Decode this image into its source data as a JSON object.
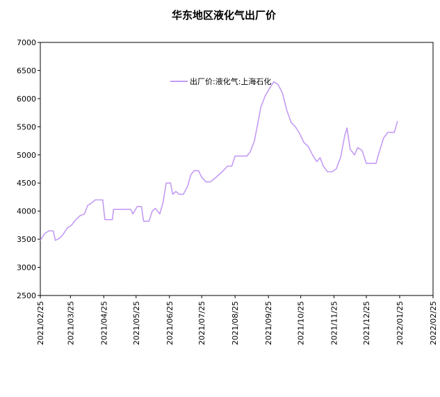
{
  "chart_data": {
    "type": "line",
    "title": "华东地区液化气出厂价",
    "xlabel": "",
    "ylabel": "",
    "ylim": [
      2500,
      7000
    ],
    "yticks": [
      2500,
      3000,
      3500,
      4000,
      4500,
      5000,
      5500,
      6000,
      6500,
      7000
    ],
    "xticks": [
      "2021/02/25",
      "2021/03/25",
      "2021/04/25",
      "2021/05/25",
      "2021/06/25",
      "2021/07/25",
      "2021/08/25",
      "2021/09/25",
      "2021/10/25",
      "2021/11/25",
      "2021/12/25",
      "2022/01/25",
      "2022/02/25"
    ],
    "legend_position": "top-center",
    "grid": false,
    "series": [
      {
        "name": "出厂价:液化气:上海石化",
        "color": "#c39bf3",
        "points": [
          [
            "2021/02/25",
            3480
          ],
          [
            "2021/03/01",
            3600
          ],
          [
            "2021/03/05",
            3650
          ],
          [
            "2021/03/09",
            3650
          ],
          [
            "2021/03/11",
            3480
          ],
          [
            "2021/03/15",
            3520
          ],
          [
            "2021/03/18",
            3580
          ],
          [
            "2021/03/22",
            3700
          ],
          [
            "2021/03/26",
            3750
          ],
          [
            "2021/03/30",
            3850
          ],
          [
            "2021/04/03",
            3920
          ],
          [
            "2021/04/07",
            3950
          ],
          [
            "2021/04/10",
            4100
          ],
          [
            "2021/04/14",
            4150
          ],
          [
            "2021/04/17",
            4200
          ],
          [
            "2021/04/24",
            4200
          ],
          [
            "2021/04/26",
            3850
          ],
          [
            "2021/05/03",
            3850
          ],
          [
            "2021/05/04",
            4030
          ],
          [
            "2021/05/20",
            4030
          ],
          [
            "2021/05/22",
            3950
          ],
          [
            "2021/05/26",
            4080
          ],
          [
            "2021/05/30",
            4080
          ],
          [
            "2021/06/01",
            3820
          ],
          [
            "2021/06/06",
            3820
          ],
          [
            "2021/06/09",
            4000
          ],
          [
            "2021/06/12",
            4050
          ],
          [
            "2021/06/16",
            3950
          ],
          [
            "2021/06/19",
            4150
          ],
          [
            "2021/06/22",
            4500
          ],
          [
            "2021/06/26",
            4500
          ],
          [
            "2021/06/28",
            4300
          ],
          [
            "2021/07/01",
            4350
          ],
          [
            "2021/07/04",
            4300
          ],
          [
            "2021/07/08",
            4300
          ],
          [
            "2021/07/12",
            4450
          ],
          [
            "2021/07/15",
            4650
          ],
          [
            "2021/07/18",
            4720
          ],
          [
            "2021/07/22",
            4720
          ],
          [
            "2021/07/25",
            4600
          ],
          [
            "2021/07/29",
            4520
          ],
          [
            "2021/08/02",
            4520
          ],
          [
            "2021/08/06",
            4580
          ],
          [
            "2021/08/10",
            4650
          ],
          [
            "2021/08/14",
            4720
          ],
          [
            "2021/08/18",
            4800
          ],
          [
            "2021/08/22",
            4800
          ],
          [
            "2021/08/25",
            4980
          ],
          [
            "2021/09/05",
            4980
          ],
          [
            "2021/09/08",
            5050
          ],
          [
            "2021/09/12",
            5250
          ],
          [
            "2021/09/15",
            5550
          ],
          [
            "2021/09/18",
            5850
          ],
          [
            "2021/09/22",
            6050
          ],
          [
            "2021/09/26",
            6180
          ],
          [
            "2021/09/30",
            6300
          ],
          [
            "2021/10/04",
            6250
          ],
          [
            "2021/10/08",
            6100
          ],
          [
            "2021/10/12",
            5800
          ],
          [
            "2021/10/16",
            5580
          ],
          [
            "2021/10/20",
            5500
          ],
          [
            "2021/10/24",
            5380
          ],
          [
            "2021/10/28",
            5220
          ],
          [
            "2021/11/01",
            5150
          ],
          [
            "2021/11/05",
            5000
          ],
          [
            "2021/11/09",
            4880
          ],
          [
            "2021/11/12",
            4950
          ],
          [
            "2021/11/15",
            4800
          ],
          [
            "2021/11/19",
            4700
          ],
          [
            "2021/11/23",
            4700
          ],
          [
            "2021/11/27",
            4750
          ],
          [
            "2021/12/01",
            4950
          ],
          [
            "2021/12/05",
            5350
          ],
          [
            "2021/12/07",
            5480
          ],
          [
            "2021/12/10",
            5100
          ],
          [
            "2021/12/14",
            5000
          ],
          [
            "2021/12/17",
            5130
          ],
          [
            "2021/12/21",
            5080
          ],
          [
            "2021/12/25",
            4850
          ],
          [
            "2022/01/03",
            4850
          ],
          [
            "2022/01/06",
            5050
          ],
          [
            "2022/01/10",
            5300
          ],
          [
            "2022/01/14",
            5400
          ],
          [
            "2022/01/20",
            5400
          ],
          [
            "2022/01/23",
            5600
          ]
        ]
      }
    ]
  }
}
